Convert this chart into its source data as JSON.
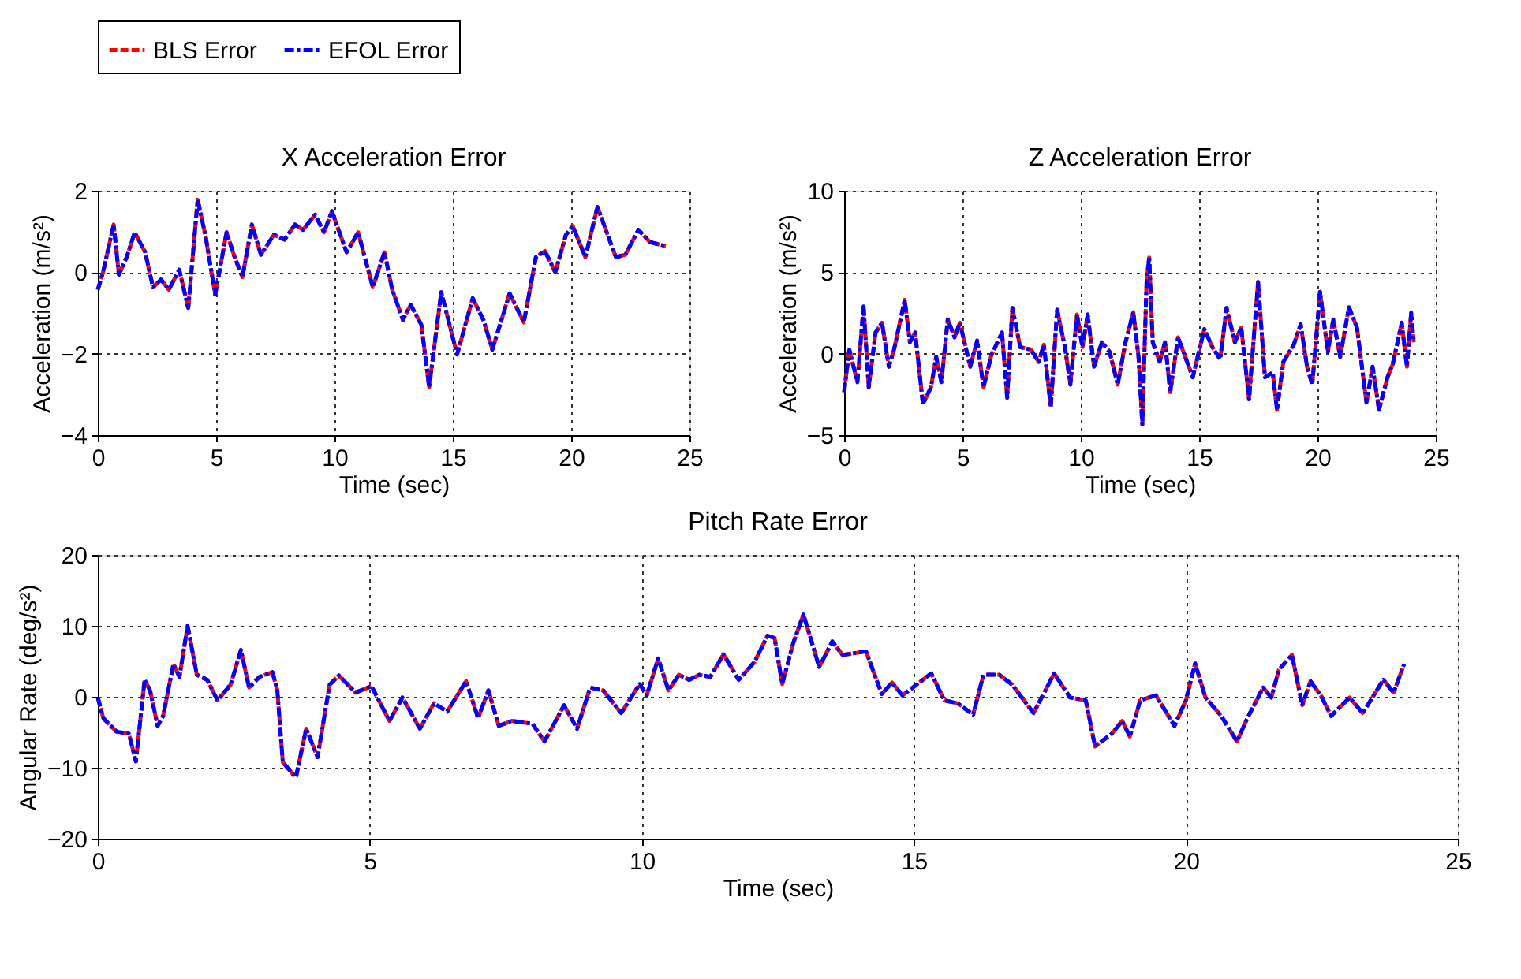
{
  "chart_data": [
    {
      "type": "line",
      "title": "X Acceleration Error",
      "xlabel": "Time (sec)",
      "ylabel": "Acceleration (m/s²)",
      "xlim": [
        0,
        25
      ],
      "xticks": [
        0,
        5,
        10,
        15,
        20,
        25
      ],
      "ylim": [
        -4,
        2
      ],
      "yticks": [
        -4,
        -2,
        0,
        2
      ],
      "grid": true,
      "legend": "top",
      "marker": "none",
      "x": [
        0,
        0.22,
        0.67,
        0.89,
        1.22,
        1.56,
        2.0,
        2.33,
        2.67,
        3.0,
        3.44,
        3.82,
        4.22,
        4.56,
        4.96,
        5.44,
        5.78,
        6.11,
        6.51,
        6.89,
        7.44,
        7.89,
        8.33,
        8.67,
        9.18,
        9.56,
        9.89,
        10.51,
        11.0,
        11.62,
        12.11,
        12.44,
        12.89,
        13.22,
        13.67,
        14.0,
        14.51,
        15.18,
        15.84,
        16.29,
        16.67,
        17.4,
        18.0,
        18.51,
        18.89,
        19.33,
        19.78,
        20.07,
        20.6,
        21.11,
        21.89,
        22.29,
        22.84,
        23.33,
        24.0
      ],
      "series": [
        {
          "name": "BLS Error",
          "color": "#ff0000",
          "line_style": "dashed",
          "values": [
            -0.43,
            0,
            1.17,
            -0.06,
            0.37,
            0.98,
            0.49,
            -0.37,
            -0.18,
            -0.43,
            0.06,
            -0.88,
            1.78,
            0.86,
            -0.55,
            0.98,
            0.37,
            -0.12,
            1.17,
            0.43,
            0.92,
            0.8,
            1.17,
            1.04,
            1.41,
            0.98,
            1.5,
            0.49,
            0.98,
            -0.37,
            0.49,
            -0.43,
            -1.17,
            -0.8,
            -1.29,
            -2.82,
            -0.49,
            -2.02,
            -0.64,
            -1.17,
            -1.9,
            -0.52,
            -1.23,
            0.37,
            0.52,
            0,
            0.92,
            1.13,
            0.37,
            1.6,
            0.37,
            0.43,
            1.04,
            0.74,
            0.64
          ]
        },
        {
          "name": "EFOL Error",
          "color": "#0000ff",
          "line_style": "dashdot",
          "values": [
            -0.43,
            0,
            1.17,
            -0.06,
            0.37,
            0.98,
            0.49,
            -0.37,
            -0.18,
            -0.43,
            0.06,
            -0.88,
            1.78,
            0.86,
            -0.55,
            0.98,
            0.37,
            -0.12,
            1.17,
            0.43,
            0.92,
            0.8,
            1.17,
            1.04,
            1.41,
            0.98,
            1.5,
            0.49,
            0.98,
            -0.37,
            0.49,
            -0.43,
            -1.17,
            -0.8,
            -1.29,
            -2.82,
            -0.49,
            -2.02,
            -0.64,
            -1.17,
            -1.9,
            -0.52,
            -1.23,
            0.37,
            0.52,
            0,
            0.92,
            1.13,
            0.37,
            1.6,
            0.37,
            0.43,
            1.04,
            0.74,
            0.64
          ]
        }
      ]
    },
    {
      "type": "line",
      "title": "Z Acceleration Error",
      "xlabel": "Time (sec)",
      "ylabel": "Acceleration (m/s²)",
      "xlim": [
        0,
        25
      ],
      "xticks": [
        0,
        5,
        10,
        15,
        20,
        25
      ],
      "ylim": [
        -5,
        10
      ],
      "yticks": [
        -5,
        0,
        5,
        10
      ],
      "grid": true,
      "legend": "top",
      "marker": "none",
      "x": [
        0,
        0.22,
        0.56,
        0.82,
        1.04,
        1.33,
        1.6,
        1.89,
        2.11,
        2.56,
        2.78,
        3.0,
        3.33,
        3.67,
        3.89,
        4.11,
        4.38,
        4.67,
        4.89,
        5.33,
        5.62,
        5.89,
        6.22,
        6.67,
        6.89,
        7.11,
        7.44,
        7.89,
        8.22,
        8.44,
        8.73,
        9.0,
        9.33,
        9.56,
        9.84,
        10.07,
        10.29,
        10.56,
        10.89,
        11.22,
        11.56,
        11.89,
        12.22,
        12.44,
        12.6,
        12.78,
        12.89,
        13.04,
        13.33,
        13.56,
        13.78,
        14.11,
        14.73,
        15.22,
        15.56,
        15.89,
        16.16,
        16.51,
        16.78,
        17.11,
        17.49,
        17.78,
        18.11,
        18.29,
        18.56,
        19.0,
        19.29,
        19.56,
        19.78,
        20.11,
        20.44,
        20.67,
        20.96,
        21.33,
        21.67,
        22.07,
        22.33,
        22.6,
        22.96,
        23.18,
        23.56,
        23.78,
        23.96,
        24.07
      ],
      "series": [
        {
          "name": "BLS Error",
          "color": "#ff0000",
          "line_style": "dashed",
          "values": [
            -2.36,
            0.25,
            -1.75,
            2.9,
            -2.06,
            1.3,
            1.9,
            -0.8,
            0.25,
            3.3,
            0.7,
            1.3,
            -3.1,
            -2.06,
            -0.2,
            -1.75,
            2.1,
            1.0,
            1.9,
            -0.8,
            0.8,
            -2.06,
            -0.1,
            1.3,
            -2.7,
            2.8,
            0.4,
            0.25,
            -0.5,
            0.55,
            -3.3,
            2.7,
            0.4,
            -1.9,
            2.4,
            0.4,
            2.4,
            -0.8,
            0.7,
            0.1,
            -1.9,
            0.7,
            2.55,
            -0.2,
            -4.35,
            4.4,
            5.9,
            0.7,
            -0.5,
            0.7,
            -2.36,
            1.0,
            -1.45,
            1.5,
            0.4,
            -0.35,
            2.8,
            0.7,
            1.6,
            -2.8,
            4.4,
            -1.45,
            -1.15,
            -3.45,
            -0.5,
            0.55,
            1.8,
            -0.8,
            -1.9,
            3.8,
            0.1,
            2.1,
            -0.2,
            2.85,
            1.6,
            -3.0,
            -0.8,
            -3.45,
            -1.45,
            -0.65,
            1.9,
            -0.8,
            2.5,
            0.7
          ]
        },
        {
          "name": "EFOL Error",
          "color": "#0000ff",
          "line_style": "dashdot",
          "values": [
            -2.36,
            0.25,
            -1.75,
            2.9,
            -2.06,
            1.3,
            1.9,
            -0.8,
            0.25,
            3.3,
            0.7,
            1.3,
            -3.1,
            -2.06,
            -0.2,
            -1.75,
            2.1,
            1.0,
            1.9,
            -0.8,
            0.8,
            -2.06,
            -0.1,
            1.3,
            -2.7,
            2.8,
            0.4,
            0.25,
            -0.5,
            0.55,
            -3.3,
            2.7,
            0.4,
            -1.9,
            2.4,
            0.4,
            2.4,
            -0.8,
            0.7,
            0.1,
            -1.9,
            0.7,
            2.55,
            -0.2,
            -4.35,
            4.4,
            5.9,
            0.7,
            -0.5,
            0.7,
            -2.36,
            1.0,
            -1.45,
            1.5,
            0.4,
            -0.35,
            2.8,
            0.7,
            1.6,
            -2.8,
            4.4,
            -1.45,
            -1.15,
            -3.45,
            -0.5,
            0.55,
            1.8,
            -0.8,
            -1.9,
            3.8,
            0.1,
            2.1,
            -0.2,
            2.85,
            1.6,
            -3.0,
            -0.8,
            -3.45,
            -1.45,
            -0.65,
            1.9,
            -0.8,
            2.5,
            0.7
          ]
        }
      ]
    },
    {
      "type": "line",
      "title": "Pitch Rate Error",
      "xlabel": "Time (sec)",
      "ylabel": "Angular Rate (deg/s²)",
      "xlim": [
        0,
        25
      ],
      "xticks": [
        0,
        5,
        10,
        15,
        20,
        25
      ],
      "ylim": [
        -20,
        20
      ],
      "yticks": [
        -20,
        -10,
        0,
        10,
        20
      ],
      "grid": true,
      "legend": "top",
      "marker": "none",
      "x": [
        0,
        0.1,
        0.34,
        0.57,
        0.7,
        0.86,
        0.96,
        1.1,
        1.2,
        1.39,
        1.5,
        1.65,
        1.82,
        2.01,
        2.2,
        2.44,
        2.63,
        2.78,
        2.97,
        3.21,
        3.3,
        3.4,
        3.64,
        3.83,
        4.04,
        4.26,
        4.43,
        4.74,
        5.03,
        5.36,
        5.6,
        5.92,
        6.18,
        6.42,
        6.77,
        6.99,
        7.18,
        7.37,
        7.61,
        7.99,
        8.21,
        8.57,
        8.81,
        9.05,
        9.29,
        9.62,
        9.96,
        10.09,
        10.3,
        10.49,
        10.68,
        10.87,
        11.06,
        11.26,
        11.5,
        11.78,
        12.07,
        12.31,
        12.44,
        12.58,
        12.78,
        12.97,
        13.26,
        13.5,
        13.69,
        14.12,
        14.41,
        14.6,
        14.79,
        15.32,
        15.56,
        15.8,
        16.09,
        16.28,
        16.57,
        16.81,
        17.2,
        17.58,
        17.87,
        18.16,
        18.33,
        18.64,
        18.83,
        18.97,
        19.16,
        19.45,
        19.79,
        20.0,
        20.17,
        20.36,
        20.65,
        20.94,
        21.13,
        21.42,
        21.57,
        21.71,
        21.95,
        22.14,
        22.29,
        22.48,
        22.67,
        23.01,
        23.25,
        23.63,
        23.82,
        24.01
      ],
      "series": [
        {
          "name": "BLS Error",
          "color": "#ff0000",
          "line_style": "dashed",
          "values": [
            -0.1,
            -3.0,
            -4.9,
            -5.2,
            -9.1,
            2.4,
            0.9,
            -4.1,
            -2.7,
            4.6,
            2.8,
            10,
            3.1,
            2.4,
            -0.5,
            1.7,
            6.6,
            1.3,
            2.8,
            3.5,
            0.9,
            -9.2,
            -11.4,
            -4.5,
            -8.5,
            1.7,
            3.0,
            0.6,
            1.5,
            -3.4,
            -0.1,
            -4.5,
            -0.9,
            -2.1,
            2.2,
            -3.0,
            0.9,
            -4.1,
            -3.4,
            -3.8,
            -6.3,
            -1.2,
            -4.5,
            1.3,
            0.9,
            -2.3,
            1.8,
            0.2,
            5.4,
            0.9,
            3.1,
            2.4,
            3.1,
            2.8,
            6.0,
            2.4,
            4.9,
            8.6,
            8.3,
            1.8,
            7.5,
            11.6,
            4.2,
            7.8,
            5.9,
            6.4,
            0.4,
            2.0,
            0.2,
            3.3,
            -0.5,
            -0.9,
            -2.5,
            3.1,
            3.1,
            1.7,
            -2.3,
            3.3,
            -0.1,
            -0.5,
            -7.0,
            -5.2,
            -3.4,
            -5.6,
            -0.5,
            0.2,
            -4.1,
            -0.5,
            4.7,
            -0.1,
            -2.7,
            -6.3,
            -3.0,
            1.3,
            -0.1,
            3.8,
            5.9,
            -1.2,
            2.2,
            0.2,
            -2.7,
            -0.1,
            -2.3,
            2.4,
            0.6,
            4.6
          ]
        },
        {
          "name": "EFOL Error",
          "color": "#0000ff",
          "line_style": "dashdot",
          "values": [
            -0.1,
            -3.0,
            -4.9,
            -5.2,
            -9.1,
            2.4,
            0.9,
            -4.1,
            -2.7,
            4.6,
            2.8,
            10,
            3.1,
            2.4,
            -0.5,
            1.7,
            6.6,
            1.3,
            2.8,
            3.5,
            0.9,
            -9.2,
            -11.4,
            -4.5,
            -8.5,
            1.7,
            3.0,
            0.6,
            1.5,
            -3.4,
            -0.1,
            -4.5,
            -0.9,
            -2.1,
            2.2,
            -3.0,
            0.9,
            -4.1,
            -3.4,
            -3.8,
            -6.3,
            -1.2,
            -4.5,
            1.3,
            0.9,
            -2.3,
            1.8,
            0.2,
            5.4,
            0.9,
            3.1,
            2.4,
            3.1,
            2.8,
            6.0,
            2.4,
            4.9,
            8.6,
            8.3,
            1.8,
            7.5,
            11.6,
            4.2,
            7.8,
            5.9,
            6.4,
            0.4,
            2.0,
            0.2,
            3.3,
            -0.5,
            -0.9,
            -2.5,
            3.1,
            3.1,
            1.7,
            -2.3,
            3.3,
            -0.1,
            -0.5,
            -7.0,
            -5.2,
            -3.4,
            -5.6,
            -0.5,
            0.2,
            -4.1,
            -0.5,
            4.7,
            -0.1,
            -2.7,
            -6.3,
            -3.0,
            1.3,
            -0.1,
            3.8,
            5.9,
            -1.2,
            2.2,
            0.2,
            -2.7,
            -0.1,
            -2.3,
            2.4,
            0.6,
            4.6
          ]
        }
      ]
    }
  ]
}
